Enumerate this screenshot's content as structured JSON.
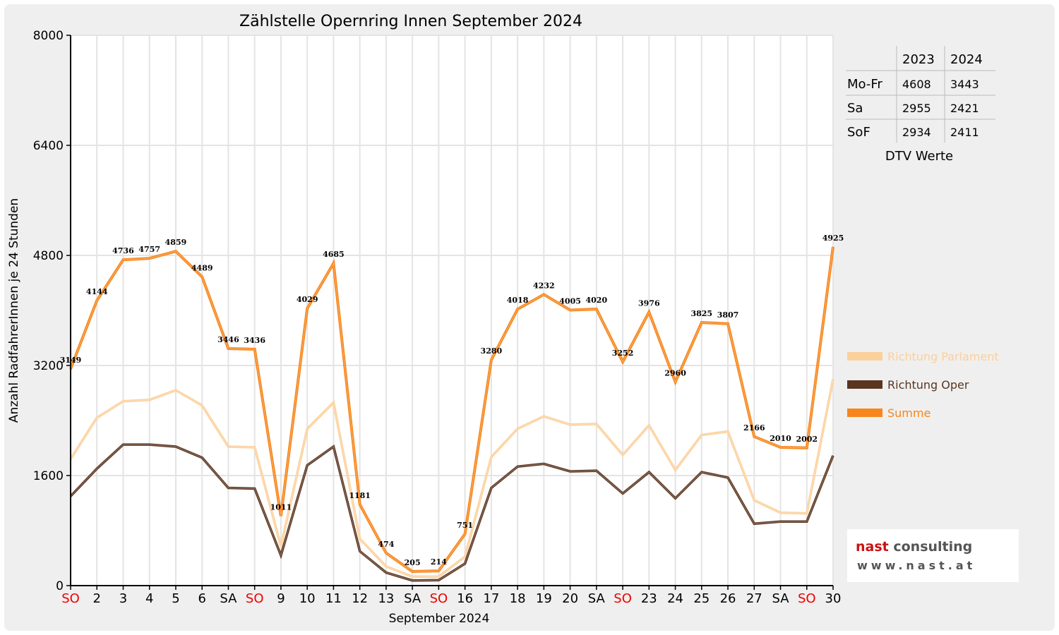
{
  "chart_data": {
    "type": "line",
    "title": "Zählstelle Opernring Innen September 2024",
    "xlabel": "September 2024",
    "ylabel": "Anzahl RadfahrerInnen je 24 Stunden",
    "ylim": [
      0,
      8000
    ],
    "yticks": [
      "0",
      "1600",
      "3200",
      "4800",
      "6400",
      "8000"
    ],
    "categories": [
      "SO",
      "2",
      "3",
      "4",
      "5",
      "6",
      "SA",
      "SO",
      "9",
      "10",
      "11",
      "12",
      "13",
      "SA",
      "SO",
      "16",
      "17",
      "18",
      "19",
      "20",
      "SA",
      "SO",
      "23",
      "24",
      "25",
      "26",
      "27",
      "SA",
      "SO",
      "30"
    ],
    "highlight_categories": [
      "SO"
    ],
    "highlight_color": "#ee0000",
    "grid": true,
    "legend_placement": "right",
    "series": [
      {
        "name": "Richtung Parlament",
        "color": "#fcd09a",
        "values": [
          1840,
          2440,
          2680,
          2700,
          2840,
          2620,
          2020,
          2010,
          570,
          2280,
          2660,
          680,
          280,
          130,
          130,
          420,
          1870,
          2280,
          2460,
          2340,
          2350,
          1900,
          2330,
          1680,
          2190,
          2240,
          1240,
          1060,
          1050,
          3000
        ]
      },
      {
        "name": "Richtung Oper",
        "color": "#5a3520",
        "values": [
          1300,
          1700,
          2050,
          2050,
          2020,
          1860,
          1420,
          1410,
          440,
          1750,
          2020,
          500,
          190,
          75,
          80,
          320,
          1420,
          1730,
          1770,
          1660,
          1670,
          1340,
          1650,
          1270,
          1650,
          1570,
          900,
          930,
          930,
          1890
        ]
      },
      {
        "name": "Summe",
        "color": "#f7861c",
        "values": [
          3149,
          4144,
          4736,
          4757,
          4859,
          4489,
          3446,
          3436,
          1011,
          4029,
          4685,
          1181,
          474,
          205,
          214,
          751,
          3280,
          4018,
          4232,
          4005,
          4020,
          3252,
          3976,
          2960,
          3825,
          3807,
          2166,
          2010,
          2002,
          4925
        ]
      }
    ],
    "data_labels": [
      "3149",
      "4144",
      "4736",
      "4757",
      "4859",
      "4489",
      "3446",
      "3436",
      "1011",
      "4029",
      "4685",
      "1181",
      "474",
      "205",
      "214",
      "751",
      "3280",
      "4018",
      "4232",
      "4005",
      "4020",
      "3252",
      "3976",
      "2960",
      "3825",
      "3807",
      "2166",
      "2010",
      "2002",
      "4925"
    ]
  },
  "dtv_table": {
    "caption": "DTV Werte",
    "columns": [
      "2023",
      "2024"
    ],
    "rows": [
      {
        "label": "Mo-Fr",
        "values": [
          "4608",
          "3443"
        ]
      },
      {
        "label": "Sa",
        "values": [
          "2955",
          "2421"
        ]
      },
      {
        "label": "SoF",
        "values": [
          "2934",
          "2411"
        ]
      }
    ]
  },
  "logo": {
    "name_accent": "nast",
    "name_rest": " consulting",
    "url": "www.nast.at",
    "accent_color": "#cc1111"
  }
}
